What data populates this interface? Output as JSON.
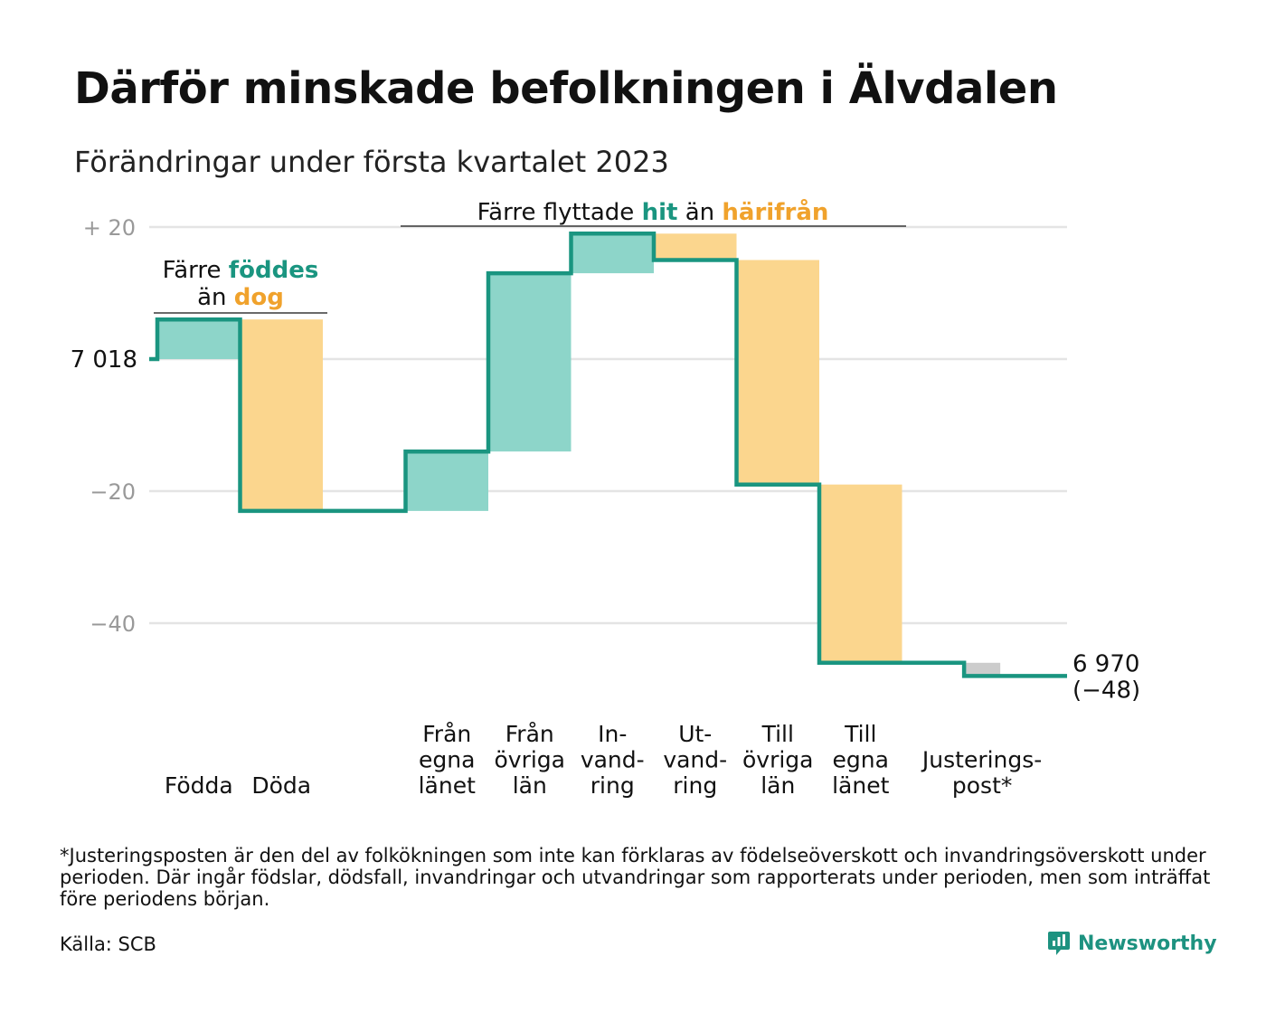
{
  "header": {
    "title": "Därför minskade befolkningen i Älvdalen",
    "subtitle": "Förändringar under första kvartalet 2023"
  },
  "colors": {
    "line": "#1a9580",
    "increase": "#8dd5c9",
    "decrease": "#fbd68e",
    "adjustment": "#cccccc",
    "grid": "#e4e4e4",
    "teal_text": "#1a9580",
    "orange_text": "#f0a22c",
    "tick_text": "#999999"
  },
  "chart_data": {
    "type": "waterfall",
    "start_value": 7018,
    "start_label": "7 018",
    "end_value": 6970,
    "end_label": "6 970",
    "end_change_label": "(−48)",
    "ylim": [
      -50,
      22
    ],
    "y_ticks": [
      {
        "value": 20,
        "label": "+ 20"
      },
      {
        "value": 0,
        "label": ""
      },
      {
        "value": -20,
        "label": "−20"
      },
      {
        "value": -40,
        "label": "−40"
      }
    ],
    "steps": [
      {
        "key": "fodda",
        "label_lines": [
          "Födda"
        ],
        "change": 6,
        "kind": "increase",
        "slot": 0
      },
      {
        "key": "doda",
        "label_lines": [
          "Döda"
        ],
        "change": -29,
        "kind": "decrease",
        "slot": 1
      },
      {
        "key": "fran_egna",
        "label_lines": [
          "Från",
          "egna",
          "länet"
        ],
        "change": 9,
        "kind": "increase",
        "slot": 3
      },
      {
        "key": "fran_ovriga",
        "label_lines": [
          "Från",
          "övriga",
          "län"
        ],
        "change": 27,
        "kind": "increase",
        "slot": 4
      },
      {
        "key": "invandring",
        "label_lines": [
          "In-",
          "vand-",
          "ring"
        ],
        "change": 6,
        "kind": "increase",
        "slot": 5
      },
      {
        "key": "utvandring",
        "label_lines": [
          "Ut-",
          "vand-",
          "ring"
        ],
        "change": -4,
        "kind": "decrease",
        "slot": 6
      },
      {
        "key": "till_ovriga",
        "label_lines": [
          "Till",
          "övriga",
          "län"
        ],
        "change": -34,
        "kind": "decrease",
        "slot": 7
      },
      {
        "key": "till_egna",
        "label_lines": [
          "Till",
          "egna",
          "länet"
        ],
        "change": -27,
        "kind": "decrease",
        "slot": 8
      },
      {
        "key": "justering",
        "label_lines": [
          "Justerings-",
          "post*"
        ],
        "change": -2,
        "kind": "adjustment",
        "slot": 9.75
      }
    ],
    "annotations": [
      {
        "key": "births",
        "lines": [
          [
            {
              "text": "Färre ",
              "style": "plain"
            },
            {
              "text": "föddes",
              "style": "teal"
            }
          ],
          [
            {
              "text": "än ",
              "style": "plain"
            },
            {
              "text": "dog",
              "style": "orange"
            }
          ]
        ]
      },
      {
        "key": "moves",
        "lines": [
          [
            {
              "text": "Färre flyttade ",
              "style": "plain"
            },
            {
              "text": "hit",
              "style": "teal"
            },
            {
              "text": " än ",
              "style": "plain"
            },
            {
              "text": "härifrån",
              "style": "orange"
            }
          ]
        ]
      }
    ]
  },
  "footer": {
    "footnote": "*Justeringsposten är den del av folkökningen som inte kan förklaras av födelseöverskott och invandringsöverskott under perioden. Där ingår födslar, dödsfall, invandringar och utvandringar som rapporterats under perioden, men som inträffat före periodens början.",
    "source": "Källa: SCB",
    "logo_text": "Newsworthy",
    "logo_icon": "newsworthy-chart-bubble-icon"
  }
}
